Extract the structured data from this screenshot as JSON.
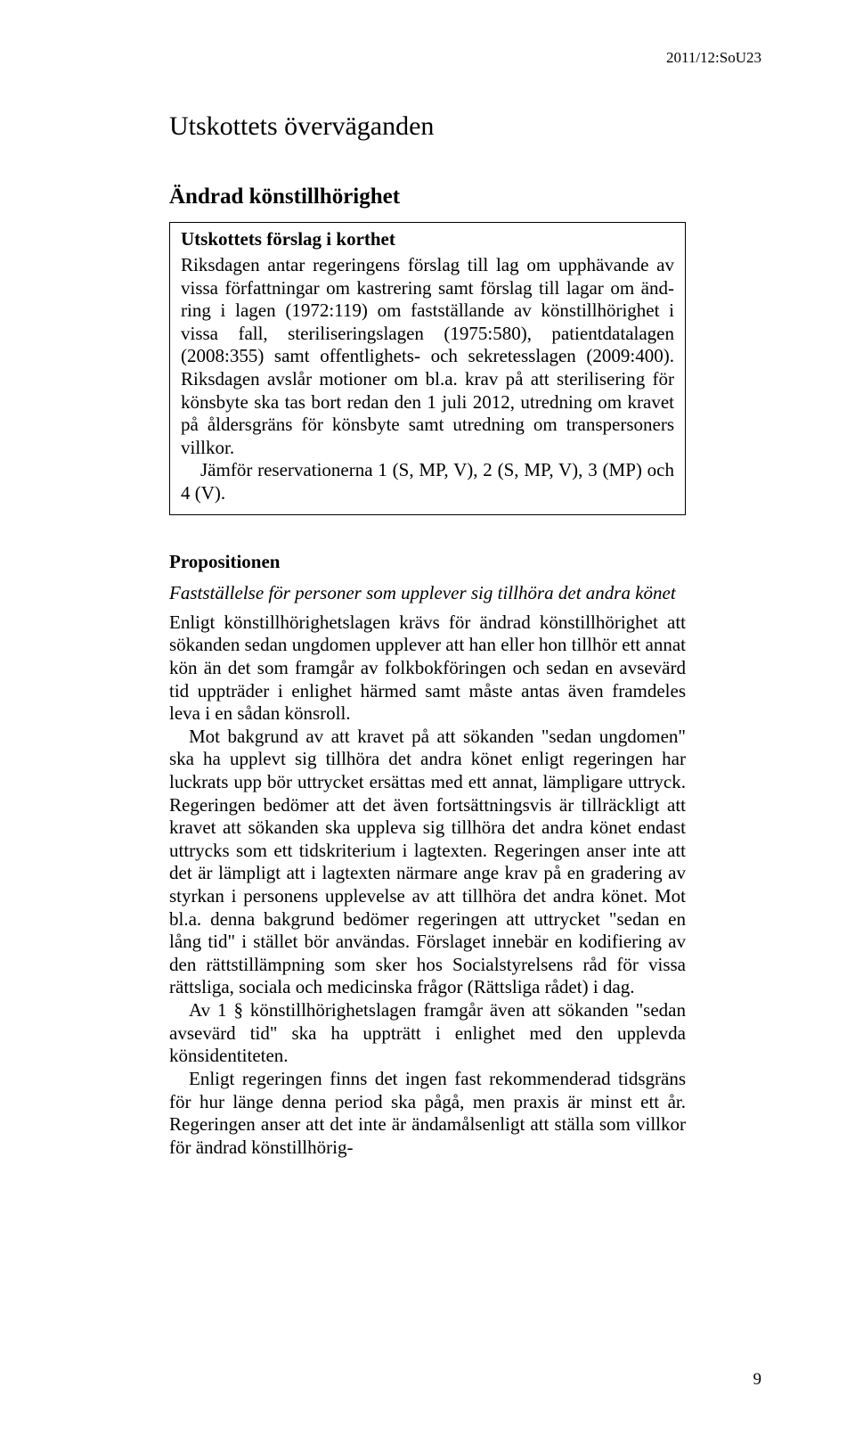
{
  "header": {
    "doc_code": "2011/12:SoU23"
  },
  "title": "Utskottets överväganden",
  "section_title": "Ändrad könstillhörighet",
  "box": {
    "title": "Utskottets förslag i korthet",
    "para1": "Riksdagen antar regeringens förslag till lag om upphävande av vissa författningar om kastrering samt förslag till lagar om änd­ring i lagen (1972:119) om fastställande av könstillhörighet i vissa fall, steriliseringslagen (1975:580), patientdatalagen (2008:355) samt offentlighets- och sekretesslagen (2009:400). Riksdagen avslår motioner om bl.a. krav på att sterilisering för könsbyte ska tas bort redan den 1 juli 2012, utredning om kravet på åldersgräns för könsbyte samt utredning om transperso­ners villkor.",
    "para2": "Jämför reservationerna 1 (S, MP, V), 2 (S, MP, V), 3 (MP) och 4 (V)."
  },
  "subsection": {
    "heading": "Propositionen",
    "subheading": "Fastställelse för personer som upplever sig tillhöra det andra könet",
    "p1": "Enligt könstillhörighetslagen krävs för ändrad könstillhörighet att sökanden sedan ungdomen upplever att han eller hon tillhör ett annat kön än det som framgår av folkbokföringen och sedan en avsevärd tid uppträder i enlighet härmed samt måste antas även framdeles leva i en sådan könsroll.",
    "p2": "Mot bakgrund av att kravet på att sökanden \"sedan ungdomen\" ska ha upplevt sig tillhöra det andra könet enligt regeringen har luckrats upp bör uttrycket ersättas med ett annat, lämpligare uttryck. Regeringen bedömer att det även fortsättningsvis är tillräckligt att kravet att sökanden ska upp­leva sig tillhöra det andra könet endast uttrycks som ett tidskriterium i lagtexten. Regeringen anser inte att det är lämpligt att i lagtexten närmare ange krav på en gradering av styrkan i personens upplevelse av att tillhöra det andra könet. Mot bl.a. denna bakgrund bedömer regeringen att uttrycket \"sedan en lång tid\" i stället bör användas. Förslaget innebär en kodifiering av den rättstillämpning som sker hos Socialstyrelsens råd för vissa rättsliga, sociala och medicinska frågor (Rättsliga rådet) i dag.",
    "p3": "Av 1 § könstillhörighetslagen framgår även att sökanden \"sedan avse­värd tid\" ska ha uppträtt i enlighet med den upplevda könsidentiteten.",
    "p4": "Enligt regeringen finns det ingen fast rekommenderad tidsgräns för hur länge denna period ska pågå, men praxis är minst ett år. Regeringen anser att det inte är ändamålsenligt att ställa som villkor för ändrad könstillhörig-"
  },
  "page_number": "9",
  "style": {
    "background_color": "#ffffff",
    "text_color": "#000000",
    "border_color": "#000000",
    "body_fontsize_pt": 16,
    "h1_fontsize_pt": 23,
    "h2_fontsize_pt": 19,
    "box_title_fontsize_pt": 16,
    "font_family": "Times New Roman"
  }
}
